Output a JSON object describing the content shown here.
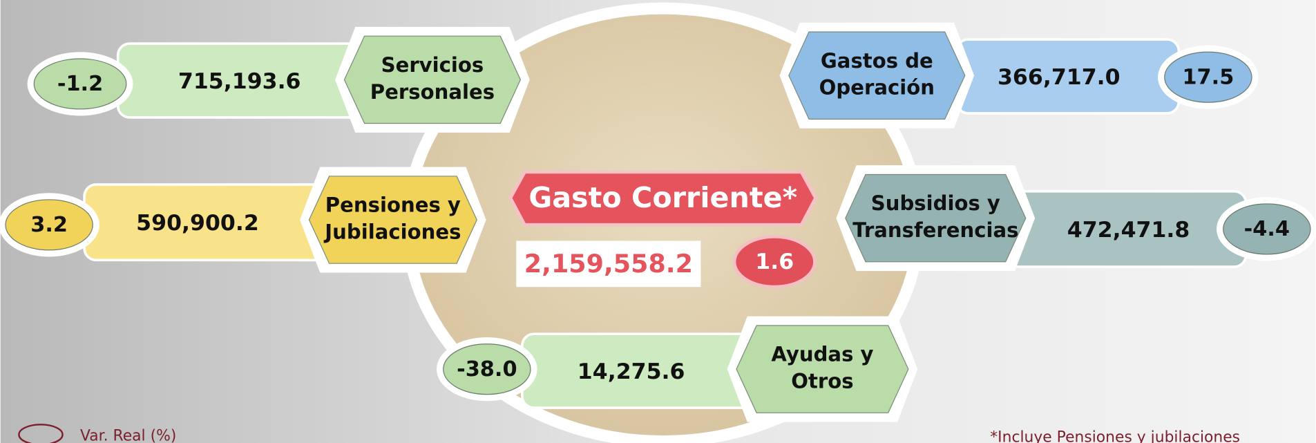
{
  "center": {
    "title": "Gasto Corriente*",
    "value": "2,159,558.2",
    "var": "1.6"
  },
  "items": [
    {
      "label": [
        "Servicios",
        "Personales"
      ],
      "value": "715,193.6",
      "var": "-1.2"
    },
    {
      "label": [
        "Gastos de",
        "Operación"
      ],
      "value": "366,717.0",
      "var": "17.5"
    },
    {
      "label": [
        "Pensiones y",
        "Jubilaciones"
      ],
      "value": "590,900.2",
      "var": "3.2"
    },
    {
      "label": [
        "Subsidios y",
        "Transferencias"
      ],
      "value": "472,471.8",
      "var": "-4.4"
    },
    {
      "label": [
        "Ayudas y",
        "Otros"
      ],
      "value": "14,275.6",
      "var": "-38.0"
    }
  ],
  "legend": "Var. Real (%)",
  "footnote": "*Incluye Pensiones y jubilaciones"
}
